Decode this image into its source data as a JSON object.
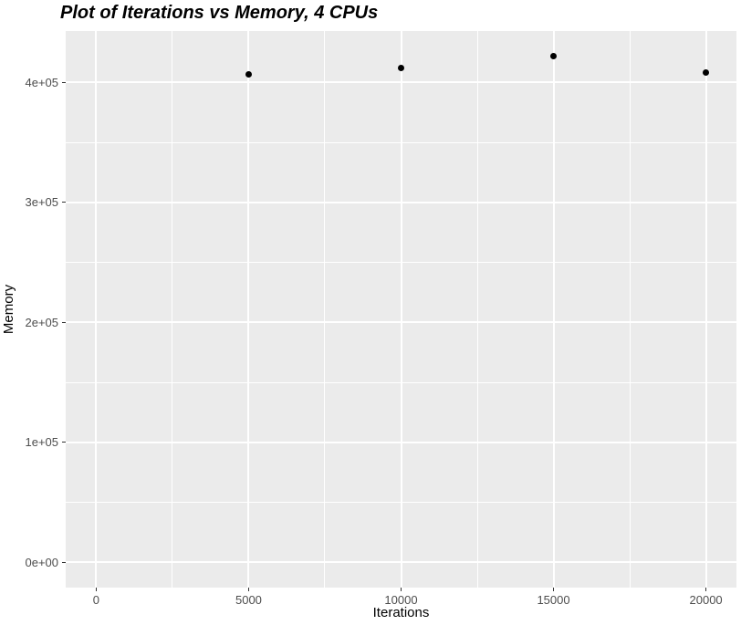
{
  "chart_data": {
    "type": "scatter",
    "title": "Plot of Iterations vs Memory, 4 CPUs",
    "xlabel": "Iterations",
    "ylabel": "Memory",
    "x": [
      5000,
      10000,
      15000,
      20000
    ],
    "y": [
      406900,
      412200,
      421700,
      408100
    ],
    "xlim": [
      -1000,
      21000
    ],
    "ylim": [
      -21100,
      442800
    ],
    "x_ticks": {
      "values": [
        0,
        5000,
        10000,
        15000,
        20000
      ],
      "labels": [
        "0",
        "5000",
        "10000",
        "15000",
        "20000"
      ]
    },
    "y_ticks": {
      "values": [
        0,
        100000,
        200000,
        300000,
        400000
      ],
      "labels": [
        "0e+00",
        "1e+05",
        "2e+05",
        "3e+05",
        "4e+05"
      ]
    },
    "x_minor": [
      2500,
      7500,
      12500,
      17500
    ],
    "y_minor": [
      50000,
      150000,
      250000,
      350000
    ],
    "grid": true,
    "legend": "none",
    "colors": {
      "panel_bg": "#EBEBEB",
      "grid": "#FFFFFF",
      "point": "#000000",
      "tick_text": "#4D4D4D",
      "tick_mark": "#333333",
      "axis_title_text": "#000000",
      "title_text": "#000000",
      "plot_bg": "#FFFFFF"
    }
  }
}
